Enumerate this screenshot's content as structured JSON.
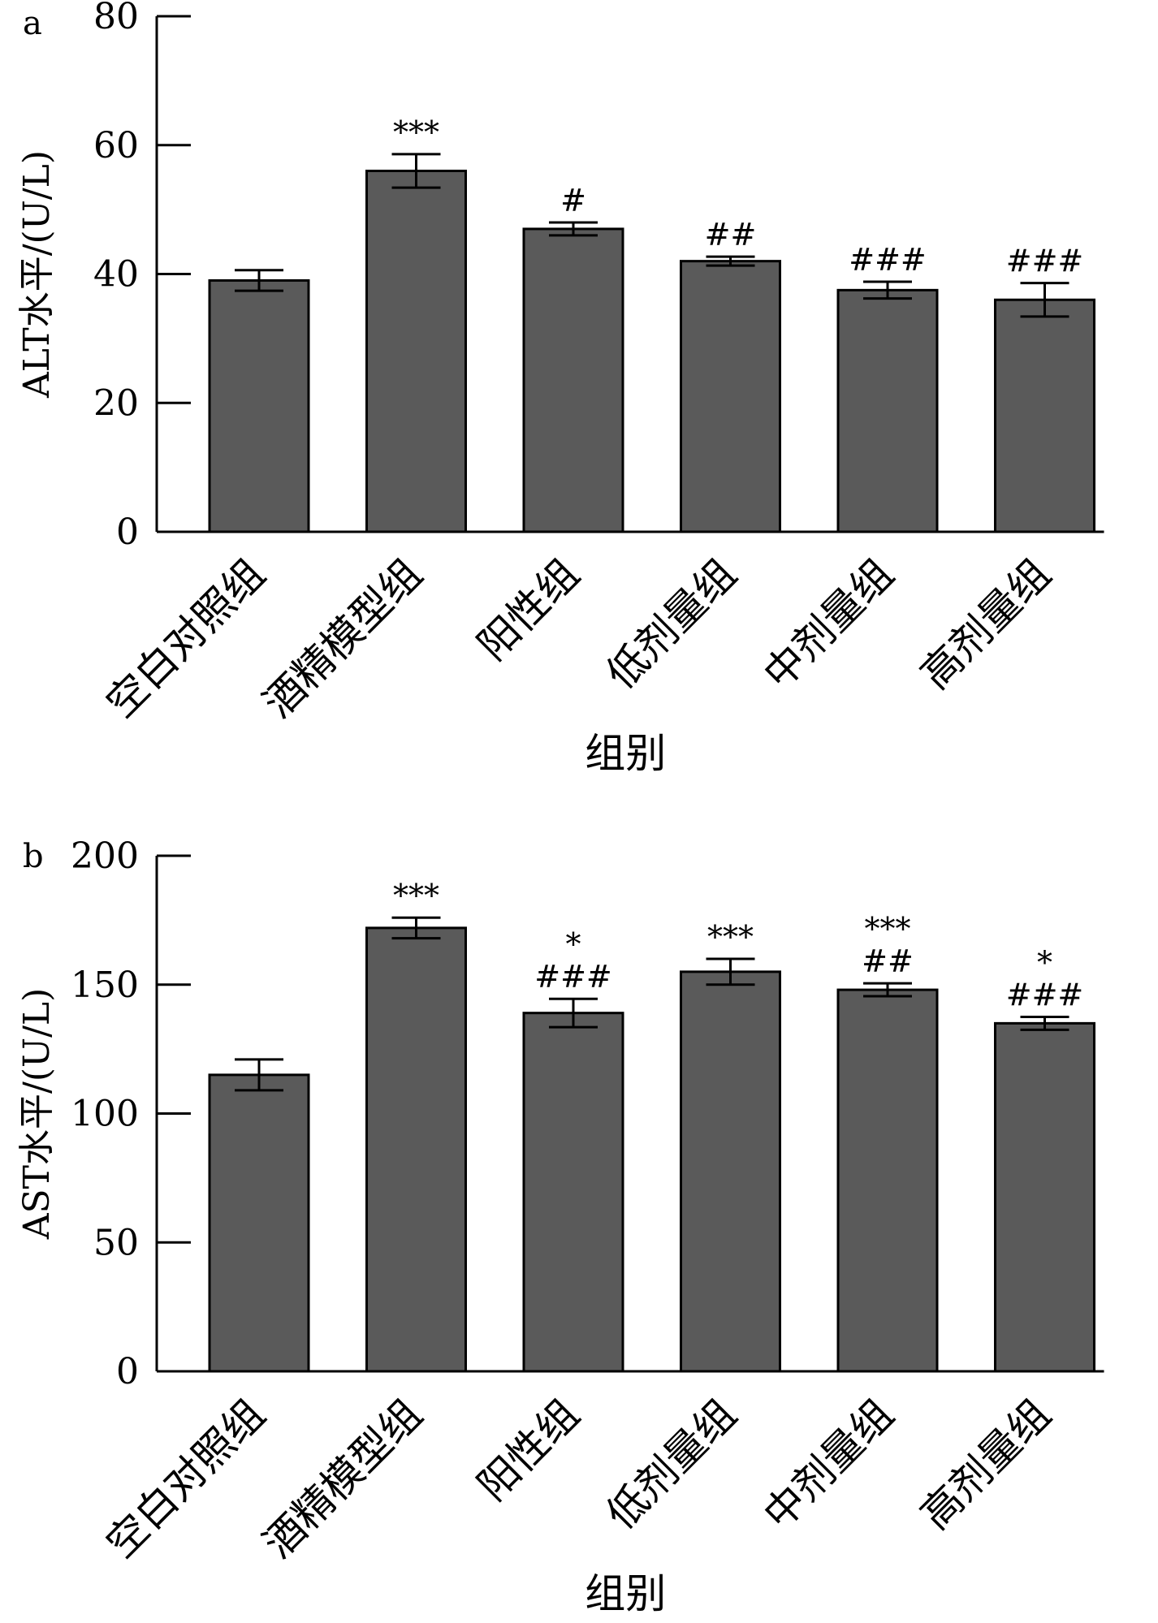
{
  "chart_data": [
    {
      "panel": "a",
      "type": "bar",
      "categories": [
        "空白对照组",
        "酒精模型组",
        "阳性组",
        "低剂量组",
        "中剂量组",
        "高剂量组"
      ],
      "values": [
        39,
        56,
        47,
        42,
        37.5,
        36
      ],
      "errors": [
        1.6,
        2.6,
        1.0,
        0.7,
        1.3,
        2.6
      ],
      "annotations": [
        [],
        [
          "***"
        ],
        [
          "#"
        ],
        [
          "##"
        ],
        [
          "###"
        ],
        [
          "###"
        ]
      ],
      "ylim": [
        0,
        80
      ],
      "yticks": [
        0,
        20,
        40,
        60,
        80
      ],
      "ylabel": "ALT水平/(U/L)",
      "xlabel": "组别"
    },
    {
      "panel": "b",
      "type": "bar",
      "categories": [
        "空白对照组",
        "酒精模型组",
        "阳性组",
        "低剂量组",
        "中剂量组",
        "高剂量组"
      ],
      "values": [
        115,
        172,
        139,
        155,
        148,
        135
      ],
      "errors": [
        6,
        4,
        5.5,
        5,
        2.5,
        2.5
      ],
      "annotations": [
        [],
        [
          "***"
        ],
        [
          "*",
          "###"
        ],
        [
          "***"
        ],
        [
          "***",
          "##"
        ],
        [
          "*",
          "###"
        ]
      ],
      "ylim": [
        0,
        200
      ],
      "yticks": [
        0,
        50,
        100,
        150,
        200
      ],
      "ylabel": "AST水平/(U/L)",
      "xlabel": "组别"
    }
  ]
}
